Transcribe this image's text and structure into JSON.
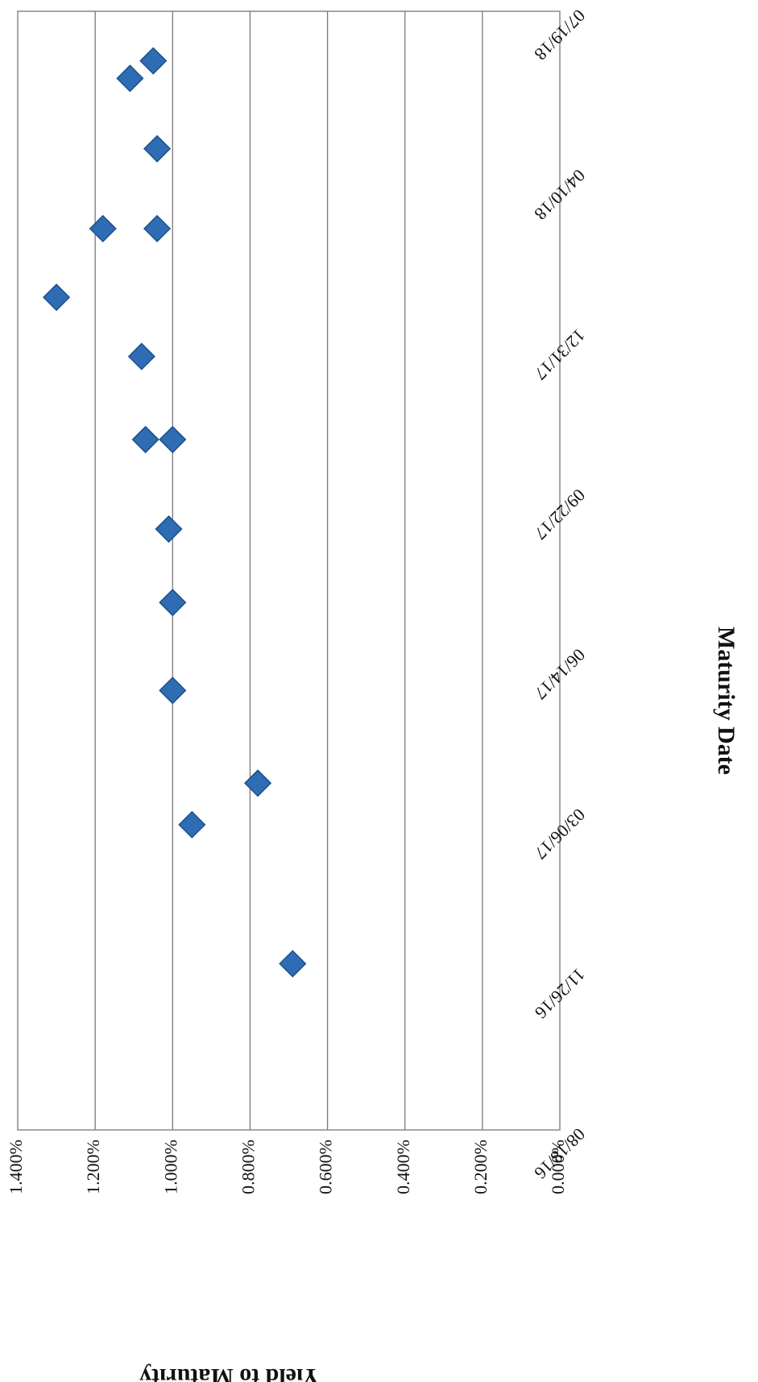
{
  "chart_data": {
    "type": "scatter",
    "title": "",
    "xlabel": "Maturity Date",
    "ylabel": "Yield to Maturity",
    "x_ticks": [
      "08/18/16",
      "11/26/16",
      "03/06/17",
      "06/14/17",
      "09/22/17",
      "12/31/17",
      "04/10/18",
      "07/19/18"
    ],
    "y_ticks": [
      "0.000%",
      "0.200%",
      "0.400%",
      "0.600%",
      "0.800%",
      "1.000%",
      "1.200%",
      "1.400%"
    ],
    "xlim": [
      "2016-08-18",
      "2018-07-19"
    ],
    "ylim": [
      0,
      1.4
    ],
    "grid": "horizontal",
    "legend": "none",
    "marker": "diamond",
    "color": "#2e6db4",
    "series": [
      {
        "points": [
          {
            "x": "2016-11-30",
            "y": 0.69
          },
          {
            "x": "2017-02-25",
            "y": 0.95
          },
          {
            "x": "2017-03-23",
            "y": 0.78
          },
          {
            "x": "2017-05-20",
            "y": 1.0
          },
          {
            "x": "2017-07-14",
            "y": 1.0
          },
          {
            "x": "2017-08-29",
            "y": 1.01
          },
          {
            "x": "2017-10-24",
            "y": 1.07
          },
          {
            "x": "2017-10-24",
            "y": 1.0
          },
          {
            "x": "2017-12-15",
            "y": 1.08
          },
          {
            "x": "2018-01-21",
            "y": 1.3
          },
          {
            "x": "2018-03-05",
            "y": 1.18
          },
          {
            "x": "2018-03-05",
            "y": 1.04
          },
          {
            "x": "2018-04-24",
            "y": 1.04
          },
          {
            "x": "2018-06-07",
            "y": 1.11
          },
          {
            "x": "2018-06-18",
            "y": 1.05
          }
        ]
      }
    ]
  }
}
